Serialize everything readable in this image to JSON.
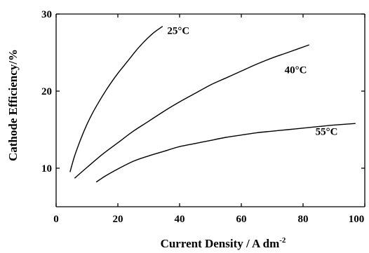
{
  "chart_data": {
    "type": "line",
    "xlabel": "Current Density  / A dm",
    "xlabel_superscript": "-2",
    "ylabel": "Cathode Efficiency/%",
    "xlim": [
      0,
      100
    ],
    "ylim": [
      5,
      30
    ],
    "x_ticks": [
      0,
      20,
      40,
      60,
      80,
      100
    ],
    "x_tick_labels": [
      "0",
      "20",
      "40",
      "60",
      "80",
      "100"
    ],
    "y_ticks": [
      10,
      20,
      30
    ],
    "y_tick_labels": [
      "10",
      "20",
      "30"
    ],
    "grid": false,
    "legend": "none",
    "series": [
      {
        "name": "25°C",
        "x": [
          4.5,
          6,
          8,
          10,
          12,
          14,
          16,
          18,
          20,
          22,
          24,
          26,
          28,
          30,
          32,
          34.5
        ],
        "y": [
          9.5,
          11.6,
          13.8,
          15.7,
          17.3,
          18.7,
          20.0,
          21.2,
          22.3,
          23.3,
          24.3,
          25.3,
          26.2,
          27.0,
          27.7,
          28.4
        ]
      },
      {
        "name": "40°C",
        "x": [
          6,
          10,
          15,
          20,
          25,
          30,
          35,
          40,
          45,
          50,
          55,
          60,
          65,
          70,
          75,
          82
        ],
        "y": [
          8.7,
          10.1,
          11.8,
          13.3,
          14.8,
          16.1,
          17.4,
          18.6,
          19.7,
          20.8,
          21.7,
          22.6,
          23.5,
          24.3,
          25.0,
          26.0
        ]
      },
      {
        "name": "55°C",
        "x": [
          13,
          16,
          20,
          25,
          30,
          35,
          40,
          45,
          50,
          55,
          60,
          65,
          70,
          75,
          80,
          85,
          90,
          97
        ],
        "y": [
          8.2,
          9.0,
          9.9,
          10.9,
          11.6,
          12.2,
          12.8,
          13.2,
          13.6,
          14.0,
          14.3,
          14.6,
          14.8,
          15.0,
          15.2,
          15.4,
          15.6,
          15.8
        ]
      }
    ],
    "annotations": [
      {
        "series": 0,
        "text": "25°C",
        "at": [
          36,
          27.4
        ]
      },
      {
        "series": 1,
        "text": "40°C",
        "at": [
          74,
          22.3
        ]
      },
      {
        "series": 2,
        "text": "55°C",
        "at": [
          84,
          14.3
        ]
      }
    ]
  }
}
